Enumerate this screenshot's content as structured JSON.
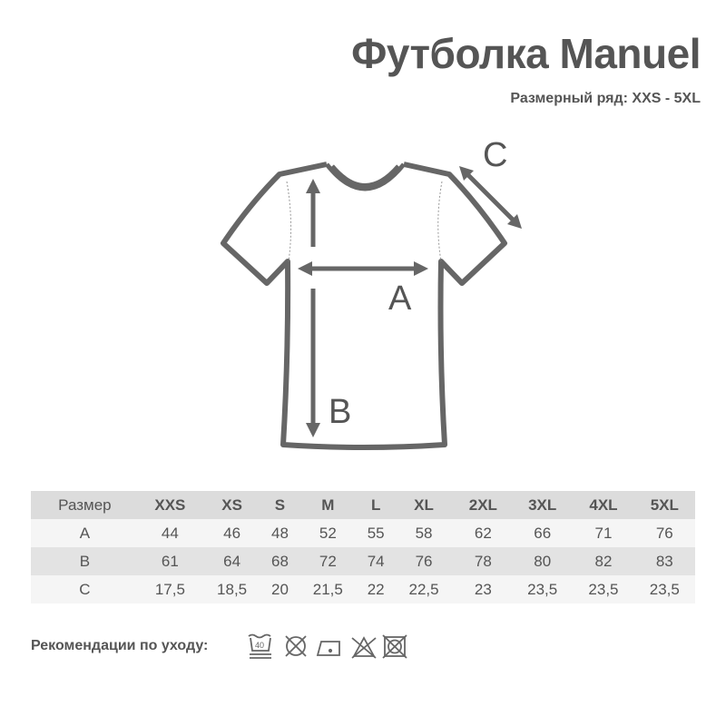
{
  "title": "Футболка Manuel",
  "subtitle": "Размерный ряд: XXS - 5XL",
  "diagram": {
    "label_a": "A",
    "label_b": "B",
    "label_c": "C"
  },
  "table": {
    "header": [
      "Размер",
      "XXS",
      "XS",
      "S",
      "M",
      "L",
      "XL",
      "2XL",
      "3XL",
      "4XL",
      "5XL"
    ],
    "rows": [
      [
        "A",
        "44",
        "46",
        "48",
        "52",
        "55",
        "58",
        "62",
        "66",
        "71",
        "76"
      ],
      [
        "B",
        "61",
        "64",
        "68",
        "72",
        "74",
        "76",
        "78",
        "80",
        "82",
        "83"
      ],
      [
        "C",
        "17,5",
        "18,5",
        "20",
        "21,5",
        "22",
        "22,5",
        "23",
        "23,5",
        "23,5",
        "23,5"
      ]
    ]
  },
  "care": {
    "label": "Рекомендации по уходу:",
    "wash_temp": "40",
    "icons": [
      "wash-40-icon",
      "no-dry-clean-icon",
      "iron-low-icon",
      "no-bleach-icon",
      "no-tumble-dry-icon"
    ]
  },
  "colors": {
    "text": "#555555",
    "header_row": "#dcdcdc",
    "stripe": "#e3e3e3"
  }
}
